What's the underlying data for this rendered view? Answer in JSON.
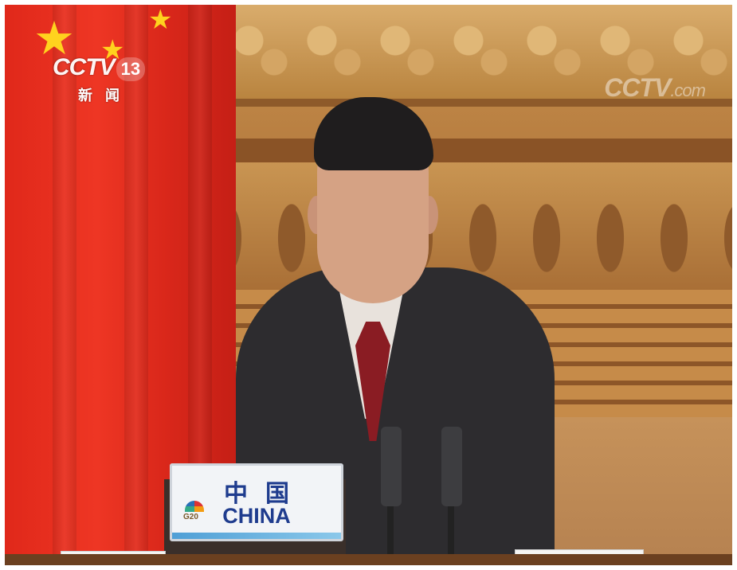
{
  "channel_logo": {
    "brand": "CCTV",
    "number": "13",
    "subtitle": "新闻"
  },
  "watermark": {
    "brand": "CCTV",
    "suffix": ".com"
  },
  "nameplate": {
    "chinese": "中国",
    "english": "CHINA",
    "event_logo": "G20"
  },
  "colors": {
    "flag_red": "#e0281a",
    "flag_star": "#ffd21e",
    "nameplate_text": "#1f3c8e"
  }
}
